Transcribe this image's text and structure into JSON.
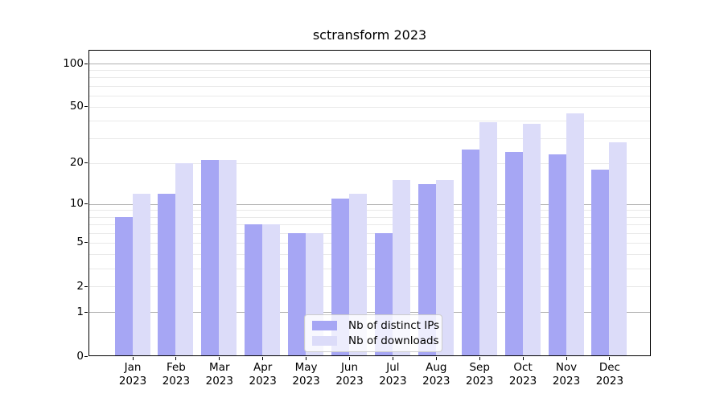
{
  "title": "sctransform 2023",
  "colors": {
    "ips_bar": "#a6a6f4",
    "downloads_bar": "#dcdcf9",
    "grid_major": "#b0b0b0",
    "grid_minor": "#e9e9e9",
    "axis_frame": "#000000",
    "legend_border": "#cccccc"
  },
  "legend": {
    "items": [
      {
        "id": "ips",
        "label": "Nb of distinct IPs"
      },
      {
        "id": "downloads",
        "label": "Nb of downloads"
      }
    ]
  },
  "y_axis": {
    "scale": "log10(value+1)",
    "tick_labels": [
      "100",
      "50",
      "20",
      "10",
      "5",
      "2",
      "1",
      "0"
    ],
    "tick_values": [
      100,
      50,
      20,
      10,
      5,
      2,
      1,
      0
    ],
    "major_gridlines": [
      1,
      10,
      100
    ],
    "minor_gridlines": [
      2,
      3,
      4,
      5,
      6,
      7,
      8,
      9,
      20,
      30,
      40,
      50,
      60,
      70,
      80,
      90
    ]
  },
  "x_axis": {
    "months": [
      "Jan",
      "Feb",
      "Mar",
      "Apr",
      "May",
      "Jun",
      "Jul",
      "Aug",
      "Sep",
      "Oct",
      "Nov",
      "Dec"
    ],
    "year": "2023"
  },
  "chart_data": {
    "type": "bar",
    "title": "sctransform 2023",
    "categories": [
      "Jan 2023",
      "Feb 2023",
      "Mar 2023",
      "Apr 2023",
      "May 2023",
      "Jun 2023",
      "Jul 2023",
      "Aug 2023",
      "Sep 2023",
      "Oct 2023",
      "Nov 2023",
      "Dec 2023"
    ],
    "series": [
      {
        "name": "Nb of distinct IPs",
        "color": "#a6a6f4",
        "values": [
          8,
          12,
          21,
          7,
          6,
          11,
          6,
          14,
          25,
          24,
          23,
          18
        ]
      },
      {
        "name": "Nb of downloads",
        "color": "#dcdcf9",
        "values": [
          12,
          20,
          21,
          7,
          6,
          12,
          15,
          15,
          39,
          38,
          45,
          28
        ]
      }
    ],
    "yscale": "log1p",
    "yticks": [
      0,
      1,
      2,
      5,
      10,
      20,
      50,
      100
    ],
    "ylim": [
      0,
      124
    ],
    "grid": true,
    "legend_position": "lower center inside"
  }
}
